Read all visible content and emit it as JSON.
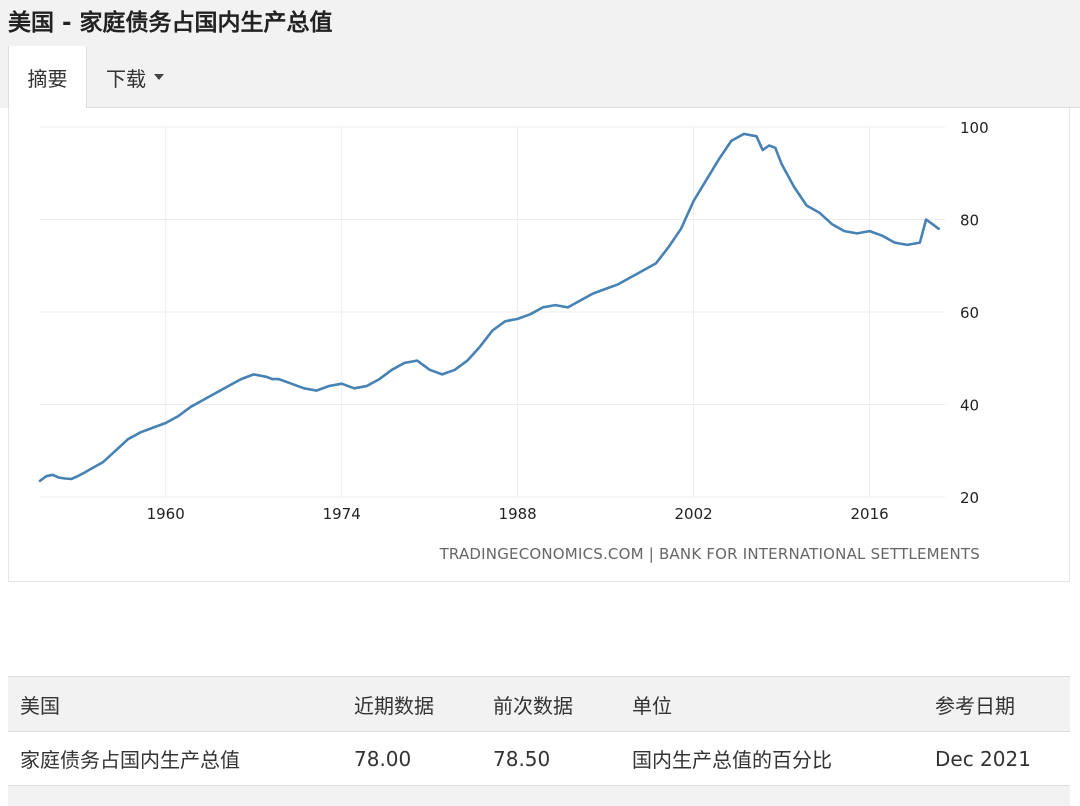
{
  "page": {
    "title": "美国 - 家庭债务占国内生产总值"
  },
  "tabs": [
    {
      "label": "摘要",
      "active": true
    },
    {
      "label": "下载",
      "active": false
    }
  ],
  "chart_data": {
    "type": "line",
    "title": "",
    "xlabel": "",
    "ylabel": "",
    "x_ticks": [
      "1960",
      "1974",
      "1988",
      "2002",
      "2016"
    ],
    "y_ticks": [
      "20",
      "40",
      "60",
      "80",
      "100"
    ],
    "ylim": [
      20,
      100
    ],
    "xlim": [
      1950,
      2022
    ],
    "grid": true,
    "series": [
      {
        "color": "#4682b4",
        "x": [
          1950.0,
          1950.5,
          1951.0,
          1951.5,
          1952.0,
          1952.5,
          1953.0,
          1953.5,
          1954.0,
          1955.0,
          1956.0,
          1957.0,
          1958.0,
          1959.0,
          1960.0,
          1961.0,
          1962.0,
          1963.0,
          1964.0,
          1965.0,
          1966.0,
          1967.0,
          1968.0,
          1968.5,
          1969.0,
          1970.0,
          1971.0,
          1972.0,
          1973.0,
          1974.0,
          1975.0,
          1976.0,
          1977.0,
          1978.0,
          1979.0,
          1980.0,
          1981.0,
          1982.0,
          1983.0,
          1984.0,
          1985.0,
          1986.0,
          1987.0,
          1988.0,
          1989.0,
          1990.0,
          1991.0,
          1992.0,
          1993.0,
          1994.0,
          1995.0,
          1996.0,
          1997.0,
          1998.0,
          1999.0,
          2000.0,
          2001.0,
          2002.0,
          2003.0,
          2004.0,
          2005.0,
          2006.0,
          2007.0,
          2007.5,
          2008.0,
          2008.5,
          2009.0,
          2010.0,
          2011.0,
          2012.0,
          2013.0,
          2014.0,
          2015.0,
          2016.0,
          2017.0,
          2018.0,
          2019.0,
          2020.0,
          2020.5,
          2021.0,
          2021.5
        ],
        "y": [
          23.5,
          24.5,
          24.8,
          24.2,
          24.0,
          23.9,
          24.5,
          25.2,
          26.0,
          27.5,
          30.0,
          32.5,
          34.0,
          35.0,
          36.0,
          37.5,
          39.5,
          41.0,
          42.5,
          44.0,
          45.5,
          46.5,
          46.0,
          45.5,
          45.5,
          44.5,
          43.5,
          43.0,
          44.0,
          44.5,
          43.5,
          44.0,
          45.5,
          47.5,
          49.0,
          49.5,
          47.5,
          46.5,
          47.5,
          49.5,
          52.5,
          56.0,
          58.0,
          58.5,
          59.5,
          61.0,
          61.5,
          61.0,
          62.5,
          64.0,
          65.0,
          66.0,
          67.5,
          69.0,
          70.5,
          74.0,
          78.0,
          84.0,
          88.5,
          93.0,
          97.0,
          98.5,
          98.0,
          95.0,
          96.0,
          95.5,
          92.0,
          87.0,
          83.0,
          81.5,
          79.0,
          77.5,
          77.0,
          77.5,
          76.5,
          75.0,
          74.5,
          75.0,
          80.0,
          79.0,
          78.0
        ]
      }
    ]
  },
  "source_text": "TRADINGECONOMICS.COM  |  BANK FOR INTERNATIONAL SETTLEMENTS",
  "table": {
    "headers": [
      "美国",
      "近期数据",
      "前次数据",
      "单位",
      "参考日期"
    ],
    "rows": [
      [
        "家庭债务占国内生产总值",
        "78.00",
        "78.50",
        "国内生产总值的百分比",
        "Dec 2021"
      ]
    ]
  }
}
